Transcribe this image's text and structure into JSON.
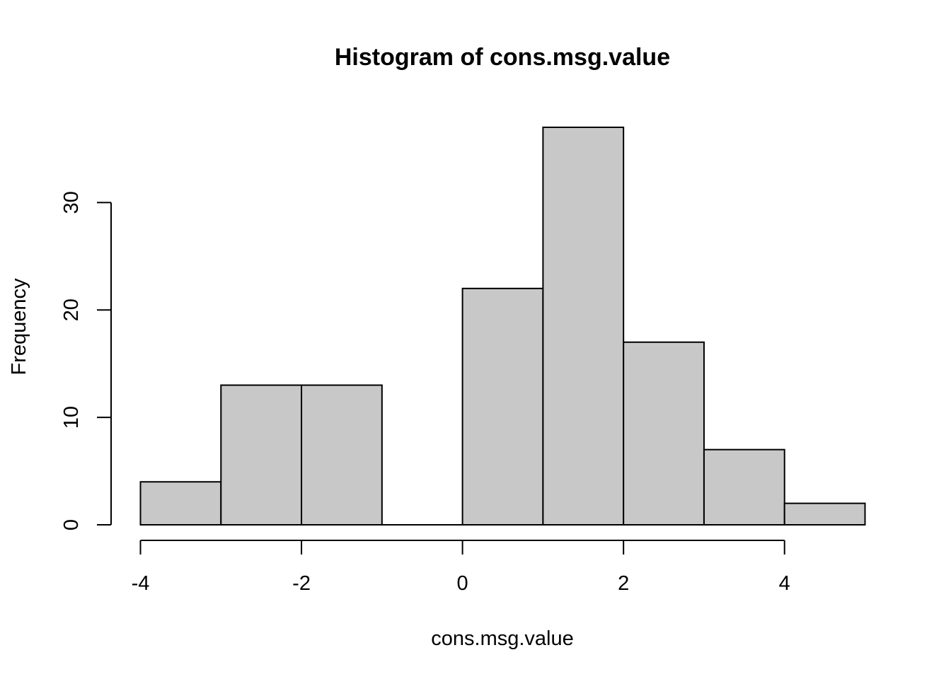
{
  "chart_data": {
    "type": "bar",
    "title": "Histogram of cons.msg.value",
    "xlabel": "cons.msg.value",
    "ylabel": "Frequency",
    "bins": [
      {
        "x0": -4,
        "x1": -3,
        "count": 4
      },
      {
        "x0": -3,
        "x1": -2,
        "count": 13
      },
      {
        "x0": -2,
        "x1": -1,
        "count": 13
      },
      {
        "x0": -1,
        "x1": 0,
        "count": 0
      },
      {
        "x0": 0,
        "x1": 1,
        "count": 22
      },
      {
        "x0": 1,
        "x1": 2,
        "count": 37
      },
      {
        "x0": 2,
        "x1": 3,
        "count": 17
      },
      {
        "x0": 3,
        "x1": 4,
        "count": 7
      },
      {
        "x0": 4,
        "x1": 5,
        "count": 2
      }
    ],
    "xlim": [
      -4,
      5
    ],
    "ylim": [
      0,
      37
    ],
    "x_ticks": [
      -4,
      -2,
      0,
      2,
      4
    ],
    "x_tick_labels": [
      "-4",
      "-2",
      "0",
      "2",
      "4"
    ],
    "y_ticks": [
      0,
      10,
      20,
      30
    ],
    "y_tick_labels": [
      "0",
      "10",
      "20",
      "30"
    ],
    "bar_color": "#c8c8c8",
    "grid": false
  }
}
